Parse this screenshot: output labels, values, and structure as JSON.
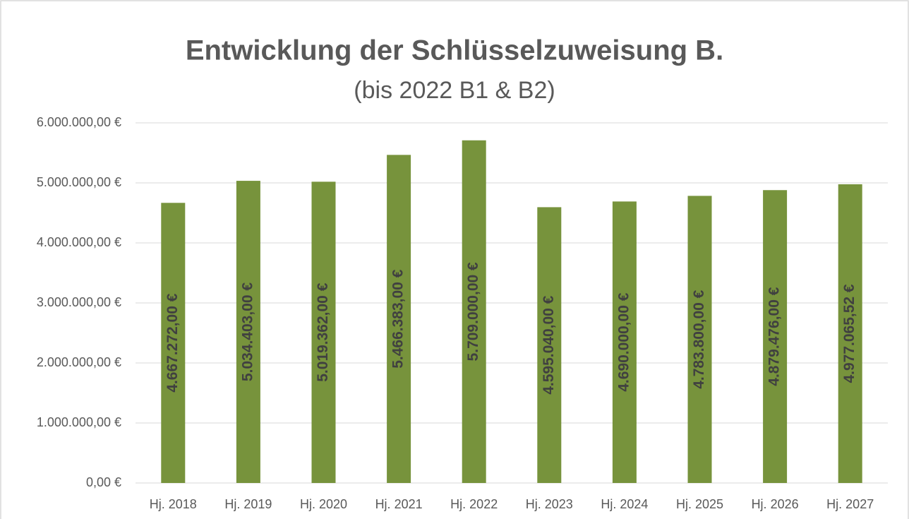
{
  "chart_data": {
    "type": "bar",
    "title": "Entwicklung der Schlüsselzuweisung B.",
    "subtitle": "(bis 2022 B1 & B2)",
    "categories": [
      "Hj. 2018",
      "Hj. 2019",
      "Hj. 2020",
      "Hj. 2021",
      "Hj. 2022",
      "Hj. 2023",
      "Hj. 2024",
      "Hj. 2025",
      "Hj. 2026",
      "Hj. 2027"
    ],
    "values": [
      4667272,
      5034403,
      5019362,
      5466383,
      5709000,
      4595040,
      4690000,
      4783800,
      4879476,
      4977065.52
    ],
    "value_labels": [
      "4.667.272,00 €",
      "5.034.403,00 €",
      "5.019.362,00 €",
      "5.466.383,00 €",
      "5.709.000,00 €",
      "4.595.040,00 €",
      "4.690.000,00 €",
      "4.783.800,00 €",
      "4.879.476,00 €",
      "4.977.065,52 €"
    ],
    "color": "#77933c",
    "ylim": [
      0,
      6000000
    ],
    "yticks": [
      {
        "value": 0,
        "label": "0,00 €"
      },
      {
        "value": 1000000,
        "label": "1.000.000,00 €"
      },
      {
        "value": 2000000,
        "label": "2.000.000,00 €"
      },
      {
        "value": 3000000,
        "label": "3.000.000,00 €"
      },
      {
        "value": 4000000,
        "label": "4.000.000,00 €"
      },
      {
        "value": 5000000,
        "label": "5.000.000,00 €"
      },
      {
        "value": 6000000,
        "label": "6.000.000,00 €"
      }
    ],
    "grid": true
  }
}
